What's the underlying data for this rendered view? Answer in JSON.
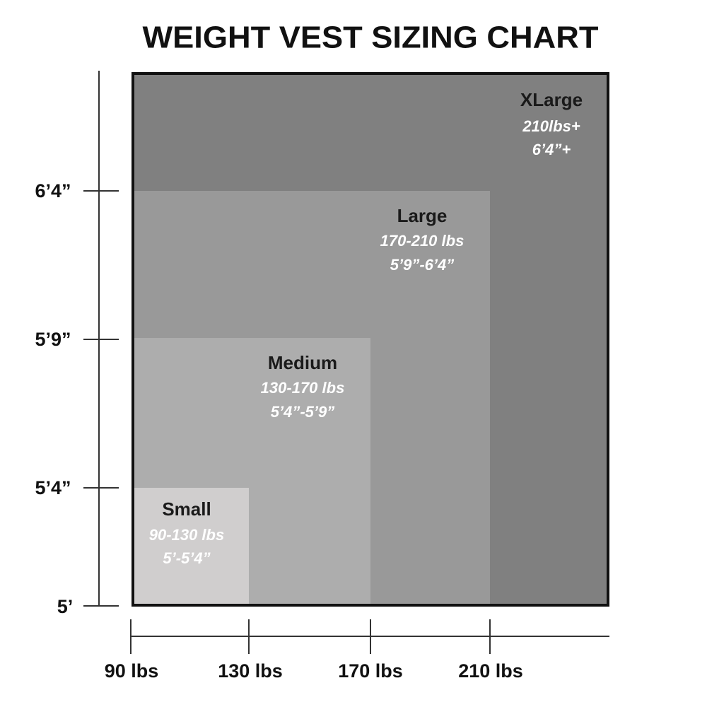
{
  "title": "WEIGHT VEST SIZING CHART",
  "height_labels": [
    "6’4”",
    "5’9”",
    "5’4”",
    "5’"
  ],
  "weight_labels": [
    "90 lbs",
    "130 lbs",
    "170 lbs",
    "210 lbs"
  ],
  "sizes": [
    {
      "name": "XLarge",
      "weight": "210lbs+",
      "height": "6’4”+"
    },
    {
      "name": "Large",
      "weight": "170-210 lbs",
      "height": "5’9”-6’4”"
    },
    {
      "name": "Medium",
      "weight": "130-170 lbs",
      "height": "5’4”-5’9”"
    },
    {
      "name": "Small",
      "weight": "90-130 lbs",
      "height": "5’-5’4”"
    }
  ]
}
